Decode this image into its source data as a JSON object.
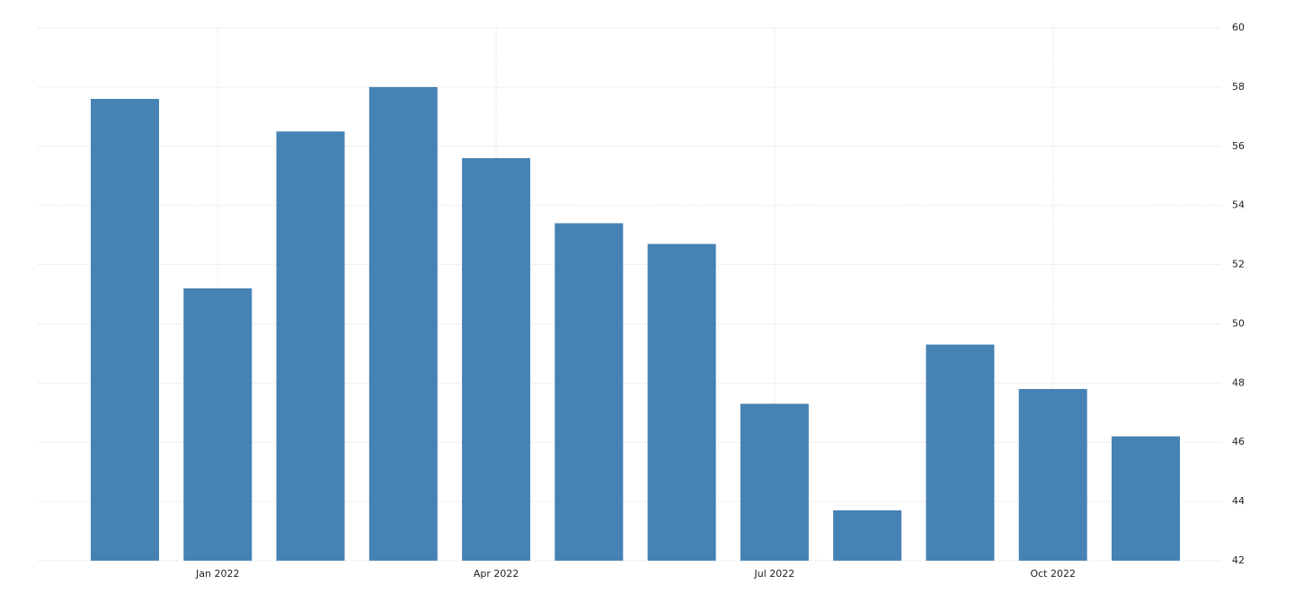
{
  "chart_data": {
    "type": "bar",
    "categories": [
      null,
      "Jan 2022",
      null,
      null,
      "Apr 2022",
      null,
      null,
      "Jul 2022",
      null,
      null,
      "Oct 2022",
      null
    ],
    "values": [
      57.6,
      51.2,
      56.5,
      58.0,
      55.6,
      53.4,
      52.7,
      47.3,
      43.7,
      49.3,
      47.8,
      46.2
    ],
    "color": "#4682b4",
    "ylim": [
      42,
      60
    ],
    "yticks": [
      42,
      44,
      46,
      48,
      50,
      52,
      54,
      56,
      58,
      60
    ],
    "grid": true
  }
}
